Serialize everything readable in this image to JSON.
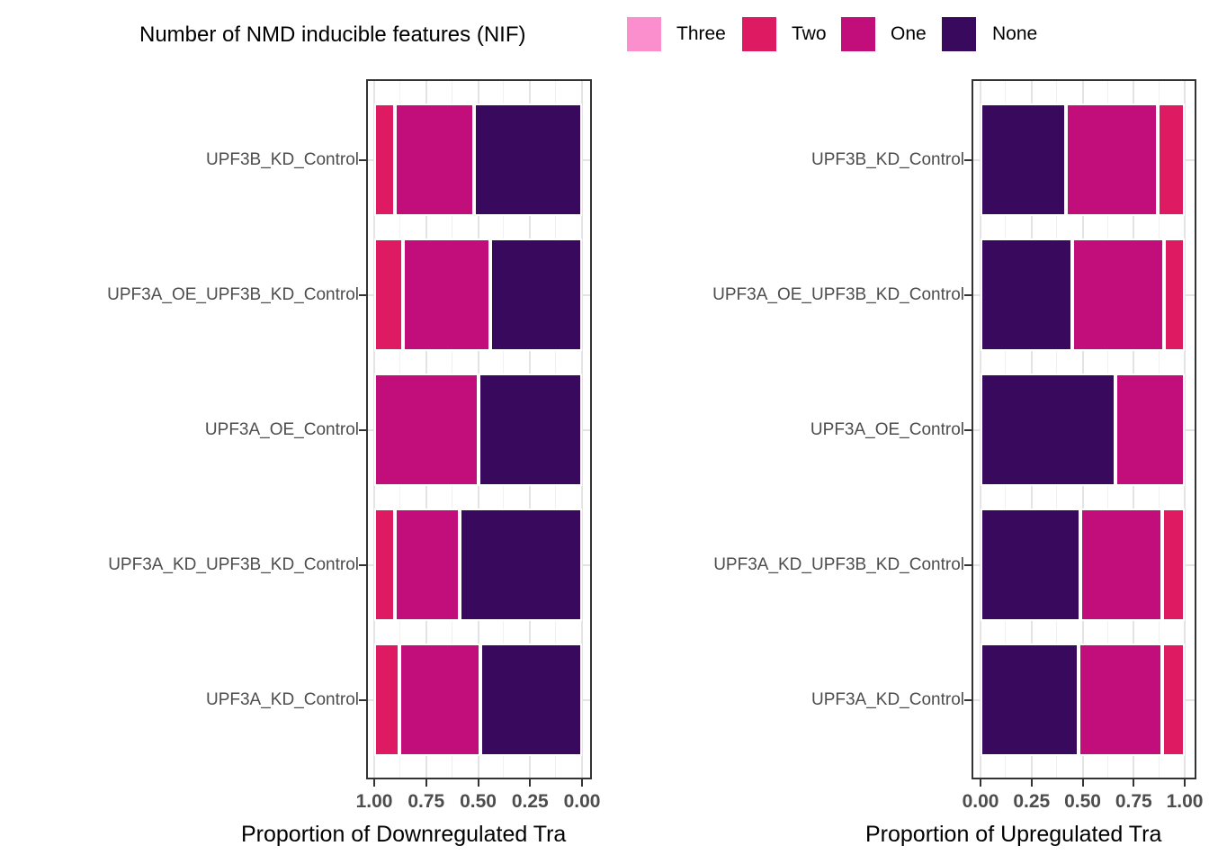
{
  "legend": {
    "title": "Number of NMD inducible features (NIF)",
    "items": [
      {
        "label": "Three",
        "color": "#FB8FCE"
      },
      {
        "label": "Two",
        "color": "#DE1B62"
      },
      {
        "label": "One",
        "color": "#C10E7B"
      },
      {
        "label": "None",
        "color": "#38095D"
      }
    ]
  },
  "colors": {
    "Three": "#FB8FCE",
    "Two": "#DE1B62",
    "One": "#C10E7B",
    "None": "#38095D"
  },
  "chart_data": [
    {
      "type": "bar",
      "stacked": true,
      "proportion": true,
      "orientation": "horizontal",
      "title": "",
      "xlabel": "Proportion of Downregulated Tra",
      "ylabel": "",
      "xlim": [
        0,
        1
      ],
      "x_axis_reversed": true,
      "x_ticks": [
        "1.00",
        "0.75",
        "0.50",
        "0.25",
        "0.00"
      ],
      "grid": true,
      "legend_position": "top",
      "categories": [
        "UPF3B_KD_Control",
        "UPF3A_OE_UPF3B_KD_Control",
        "UPF3A_OE_Control",
        "UPF3A_KD_UPF3B_KD_Control",
        "UPF3A_KD_Control"
      ],
      "series": [
        {
          "name": "Three",
          "values": [
            0,
            0,
            0,
            0,
            0
          ]
        },
        {
          "name": "Two",
          "values": [
            0.1,
            0.14,
            0.0,
            0.1,
            0.12
          ]
        },
        {
          "name": "One",
          "values": [
            0.38,
            0.42,
            0.5,
            0.31,
            0.39
          ]
        },
        {
          "name": "None",
          "values": [
            0.52,
            0.44,
            0.5,
            0.59,
            0.49
          ]
        }
      ]
    },
    {
      "type": "bar",
      "stacked": true,
      "proportion": true,
      "orientation": "horizontal",
      "title": "",
      "xlabel": "Proportion of Upregulated Tra",
      "ylabel": "",
      "xlim": [
        0,
        1
      ],
      "x_axis_reversed": false,
      "x_ticks": [
        "0.00",
        "0.25",
        "0.50",
        "0.75",
        "1.00"
      ],
      "grid": true,
      "legend_position": "top",
      "categories": [
        "UPF3B_KD_Control",
        "UPF3A_OE_UPF3B_KD_Control",
        "UPF3A_OE_Control",
        "UPF3A_KD_UPF3B_KD_Control",
        "UPF3A_KD_Control"
      ],
      "series": [
        {
          "name": "Three",
          "values": [
            0,
            0,
            0,
            0,
            0
          ]
        },
        {
          "name": "Two",
          "values": [
            0.13,
            0.1,
            0.0,
            0.11,
            0.11
          ]
        },
        {
          "name": "One",
          "values": [
            0.45,
            0.45,
            0.34,
            0.4,
            0.41
          ]
        },
        {
          "name": "None",
          "values": [
            0.42,
            0.45,
            0.66,
            0.49,
            0.48
          ]
        }
      ]
    }
  ]
}
